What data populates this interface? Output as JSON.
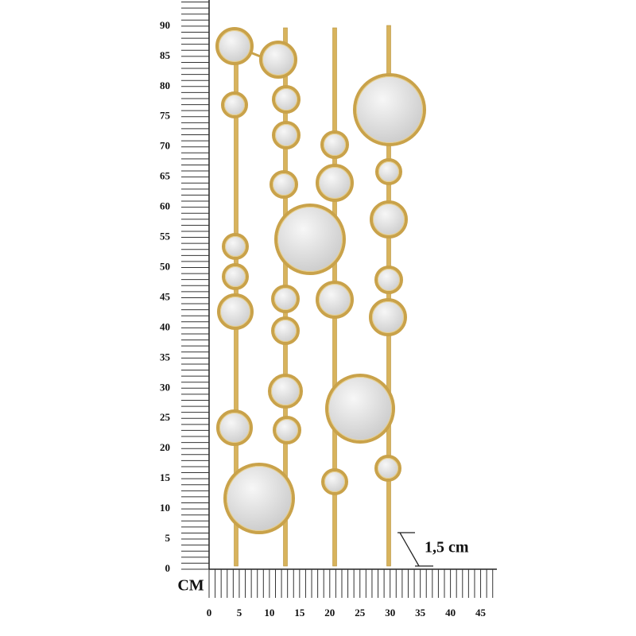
{
  "ruler": {
    "unit": "CM",
    "vertical_labels": [
      0,
      5,
      10,
      15,
      20,
      25,
      30,
      35,
      40,
      45,
      50,
      55,
      60,
      65,
      70,
      75,
      80,
      85,
      90
    ],
    "horizontal_labels": [
      0,
      5,
      10,
      15,
      20,
      25,
      30,
      35,
      40,
      45
    ]
  },
  "annotation": "1,5 cm"
}
